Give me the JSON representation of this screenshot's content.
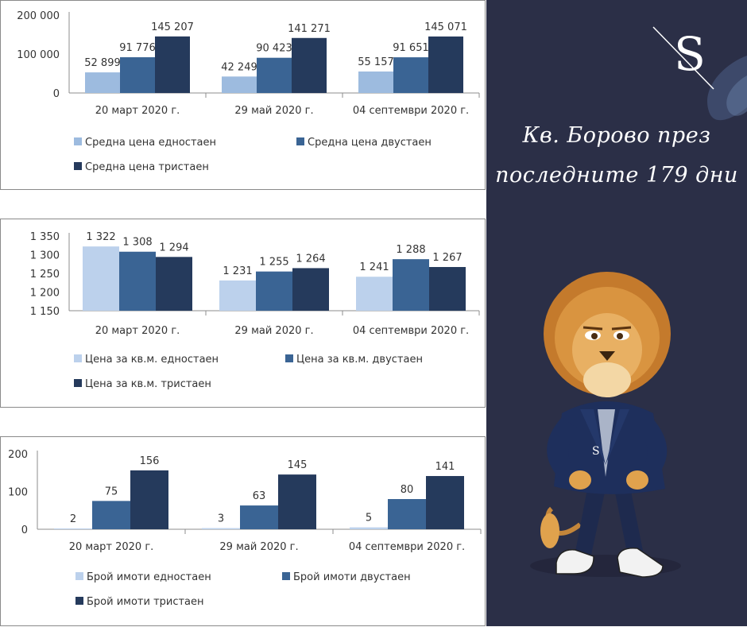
{
  "colors": {
    "single": "#9dbbdf",
    "single_light": "#bcd1ec",
    "double": "#3a6494",
    "triple": "#253a5c",
    "panel_bg": "#2b2f47"
  },
  "brand": {
    "logo_letter": "S",
    "title_line1": "Кв. Борово през",
    "title_line2": "последните 179 дни"
  },
  "chart_data": [
    {
      "type": "bar",
      "categories": [
        "20 март 2020 г.",
        "29 май 2020 г.",
        "04 септември 2020 г."
      ],
      "series": [
        {
          "name": "Средна цена едностаен",
          "values": [
            52899,
            42249,
            55157
          ],
          "labels": [
            "52 899",
            "42 249",
            "55 157"
          ],
          "color": "#9dbbdf"
        },
        {
          "name": "Средна цена двустаен",
          "values": [
            91776,
            90423,
            91651
          ],
          "labels": [
            "91 776",
            "90 423",
            "91 651"
          ],
          "color": "#3a6494"
        },
        {
          "name": "Средна цена тристаен",
          "values": [
            145207,
            141271,
            145071
          ],
          "labels": [
            "145 207",
            "141 271",
            "145 071"
          ],
          "color": "#253a5c"
        }
      ],
      "ylim": [
        0,
        200000
      ],
      "yticks": [
        0,
        100000,
        200000
      ],
      "ytick_labels": [
        "0",
        "100 000",
        "200 000"
      ],
      "legend": "bottom",
      "grid": false
    },
    {
      "type": "bar",
      "categories": [
        "20 март 2020 г.",
        "29 май 2020 г.",
        "04 септември 2020 г."
      ],
      "series": [
        {
          "name": "Цена за кв.м. едностаен",
          "values": [
            1322,
            1231,
            1241
          ],
          "labels": [
            "1 322",
            "1 231",
            "1 241"
          ],
          "color": "#bcd1ec"
        },
        {
          "name": "Цена за кв.м. двустаен",
          "values": [
            1308,
            1255,
            1288
          ],
          "labels": [
            "1 308",
            "1 255",
            "1 288"
          ],
          "color": "#3a6494"
        },
        {
          "name": "Цена за кв.м. тристаен",
          "values": [
            1294,
            1264,
            1267
          ],
          "labels": [
            "1 294",
            "1 264",
            "1 267"
          ],
          "color": "#253a5c"
        }
      ],
      "ylim": [
        1150,
        1350
      ],
      "yticks": [
        1150,
        1200,
        1250,
        1300,
        1350
      ],
      "ytick_labels": [
        "1 150",
        "1 200",
        "1 250",
        "1 300",
        "1 350"
      ],
      "legend": "bottom",
      "grid": false
    },
    {
      "type": "bar",
      "categories": [
        "20 март 2020 г.",
        "29 май 2020 г.",
        "04 септември 2020 г."
      ],
      "series": [
        {
          "name": "Брой имоти едностаен",
          "values": [
            2,
            3,
            5
          ],
          "labels": [
            "2",
            "3",
            "5"
          ],
          "color": "#bcd1ec"
        },
        {
          "name": "Брой имоти двустаен",
          "values": [
            75,
            63,
            80
          ],
          "labels": [
            "75",
            "63",
            "80"
          ],
          "color": "#3a6494"
        },
        {
          "name": "Брой имоти тристаен",
          "values": [
            156,
            145,
            141
          ],
          "labels": [
            "156",
            "145",
            "141"
          ],
          "color": "#253a5c"
        }
      ],
      "ylim": [
        0,
        200
      ],
      "yticks": [
        0,
        100,
        200
      ],
      "ytick_labels": [
        "0",
        "100",
        "200"
      ],
      "legend": "bottom",
      "grid": false
    }
  ]
}
